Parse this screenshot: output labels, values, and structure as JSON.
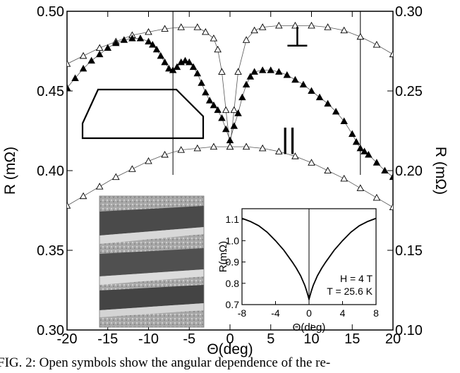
{
  "chart_data": [
    {
      "type": "scatter",
      "title": "",
      "xlabel": "Θ(deg)",
      "ylabel_left": "R (mΩ)",
      "ylabel_right": "R (mΩ)",
      "xlim": [
        -20,
        20
      ],
      "ylim_left": [
        0.3,
        0.5
      ],
      "ylim_right": [
        0.1,
        0.3
      ],
      "xticks": [
        "-20",
        "-15",
        "-10",
        "-5",
        "0",
        "5",
        "10",
        "15",
        "20"
      ],
      "yticks_left": [
        "0.30",
        "0.35",
        "0.40",
        "0.45",
        "0.50"
      ],
      "yticks_right": [
        "0.10",
        "0.15",
        "0.20",
        "0.25",
        "0.30"
      ],
      "vertical_lines_x": [
        -7,
        16
      ],
      "annotations": {
        "perp": "⊥",
        "par": "||"
      },
      "series": [
        {
          "marker": "open triangle",
          "axis": "right",
          "x": [
            -20,
            -18,
            -16,
            -14,
            -12,
            -10,
            -8,
            -6,
            -4,
            -3,
            -2,
            -1.5,
            -1,
            -0.5,
            0,
            0.5,
            1,
            2,
            3,
            4,
            6,
            8,
            10,
            12,
            14,
            16,
            18,
            20
          ],
          "y": [
            0.267,
            0.272,
            0.277,
            0.281,
            0.285,
            0.287,
            0.289,
            0.29,
            0.29,
            0.287,
            0.283,
            0.276,
            0.262,
            0.238,
            0.215,
            0.238,
            0.262,
            0.282,
            0.288,
            0.29,
            0.291,
            0.291,
            0.291,
            0.29,
            0.288,
            0.284,
            0.279,
            0.273
          ]
        },
        {
          "marker": "filled triangle",
          "axis": "left",
          "x": [
            -20,
            -19,
            -18,
            -17,
            -16,
            -15,
            -14,
            -13,
            -12,
            -11,
            -10,
            -9.5,
            -9,
            -8.5,
            -8,
            -7.5,
            -7,
            -6.5,
            -6,
            -5.5,
            -5,
            -4.5,
            -4,
            -3.5,
            -3,
            -2.5,
            -2,
            -1.5,
            -1,
            -0.5,
            0,
            0.5,
            1,
            1.5,
            2,
            2.5,
            3,
            4,
            5,
            6,
            7,
            8,
            9,
            10,
            11,
            12,
            13,
            14,
            15,
            15.5,
            16,
            16.5,
            17,
            18,
            19,
            20
          ],
          "y": [
            0.452,
            0.458,
            0.464,
            0.469,
            0.473,
            0.477,
            0.48,
            0.482,
            0.483,
            0.483,
            0.481,
            0.479,
            0.476,
            0.472,
            0.468,
            0.464,
            0.463,
            0.465,
            0.468,
            0.469,
            0.468,
            0.465,
            0.461,
            0.455,
            0.449,
            0.444,
            0.441,
            0.438,
            0.433,
            0.426,
            0.419,
            0.428,
            0.436,
            0.446,
            0.454,
            0.459,
            0.462,
            0.463,
            0.463,
            0.462,
            0.46,
            0.457,
            0.454,
            0.45,
            0.446,
            0.442,
            0.437,
            0.431,
            0.423,
            0.418,
            0.414,
            0.412,
            0.41,
            0.405,
            0.4,
            0.396
          ]
        },
        {
          "marker": "open triangle",
          "axis": "left",
          "x": [
            -20,
            -18,
            -16,
            -14,
            -12,
            -10,
            -8,
            -6,
            -4,
            -2,
            0,
            2,
            4,
            6,
            8,
            10,
            12,
            14,
            16,
            18,
            20
          ],
          "y": [
            0.378,
            0.384,
            0.39,
            0.396,
            0.401,
            0.406,
            0.41,
            0.413,
            0.414,
            0.415,
            0.415,
            0.415,
            0.414,
            0.412,
            0.409,
            0.405,
            0.4,
            0.395,
            0.389,
            0.383,
            0.377
          ]
        }
      ]
    },
    {
      "type": "line",
      "title": "",
      "xlabel": "Θ(deg)",
      "ylabel": "R(mΩ)",
      "xlim": [
        -8,
        8
      ],
      "ylim": [
        0.7,
        1.15
      ],
      "xticks": [
        "-8",
        "-4",
        "0",
        "4",
        "8"
      ],
      "yticks": [
        "0.7",
        "0.8",
        "0.9",
        "1.0",
        "1.1"
      ],
      "annotations": [
        "H = 4 T",
        "T = 25.6 K"
      ],
      "series": [
        {
          "x": [
            -8,
            -7,
            -6,
            -5,
            -4,
            -3,
            -2,
            -1.5,
            -1,
            -0.5,
            -0.25,
            0,
            0.25,
            0.5,
            1,
            1.5,
            2,
            3,
            4,
            5,
            6,
            7,
            8
          ],
          "y": [
            1.105,
            1.09,
            1.07,
            1.04,
            1.0,
            0.955,
            0.9,
            0.87,
            0.835,
            0.79,
            0.76,
            0.725,
            0.76,
            0.79,
            0.835,
            0.87,
            0.9,
            0.955,
            1.0,
            1.04,
            1.07,
            1.09,
            1.105
          ]
        }
      ]
    }
  ],
  "caption": "FIG. 2: Open symbols show the angular dependence of the re-"
}
